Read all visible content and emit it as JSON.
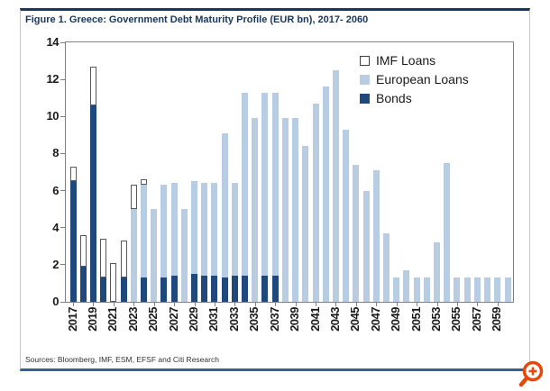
{
  "figure": {
    "title": "Figure 1. Greece: Government Debt Maturity Profile (EUR bn), 2017- 2060",
    "source": "Sources: Bloomberg, IMF, ESM, EFSF and Citi Research"
  },
  "legend": {
    "items": [
      {
        "label": "IMF Loans",
        "series": "IMF Loans"
      },
      {
        "label": "European Loans",
        "series": "European Loans"
      },
      {
        "label": "Bonds",
        "series": "Bonds"
      }
    ]
  },
  "colors": {
    "frame_top_line": "#17375D",
    "frame_bottom_line": "#376092",
    "plot_border": "#808080",
    "bonds": "#1F497D",
    "european_loans": "#B8CCE4",
    "imf_fill": "#FFFFFF",
    "imf_border": "#595959",
    "magnifier_icon": "#E8470A"
  },
  "icons": {
    "bottom_right": "zoom-in-magnifier-icon"
  },
  "chart_data": {
    "type": "bar",
    "stacked": true,
    "grid": false,
    "legend_position": "top-right",
    "title": "Figure 1. Greece: Government Debt Maturity Profile (EUR bn), 2017- 2060",
    "xlabel": "",
    "ylabel": "",
    "ylim": [
      0,
      14
    ],
    "yticks": [
      0,
      2,
      4,
      6,
      8,
      10,
      12,
      14
    ],
    "xtick_labels": [
      "2017",
      "2019",
      "2021",
      "2023",
      "2025",
      "2027",
      "2029",
      "2031",
      "2033",
      "2035",
      "2037",
      "2039",
      "2041",
      "2043",
      "2045",
      "2047",
      "2049",
      "2051",
      "2053",
      "2055",
      "2057",
      "2059"
    ],
    "years": [
      2017,
      2018,
      2019,
      2020,
      2021,
      2022,
      2023,
      2024,
      2025,
      2026,
      2027,
      2028,
      2029,
      2030,
      2031,
      2032,
      2033,
      2034,
      2035,
      2036,
      2037,
      2038,
      2039,
      2040,
      2041,
      2042,
      2043,
      2044,
      2045,
      2046,
      2047,
      2048,
      2049,
      2050,
      2051,
      2052,
      2053,
      2054,
      2055,
      2056,
      2057,
      2058,
      2059,
      2060
    ],
    "series": [
      {
        "name": "Bonds",
        "color": "#1F497D",
        "values": [
          6.5,
          1.9,
          10.6,
          1.3,
          0,
          1.3,
          0,
          1.3,
          0,
          1.3,
          1.4,
          0,
          1.5,
          1.4,
          1.4,
          1.3,
          1.4,
          1.4,
          0,
          1.4,
          1.4,
          0,
          0,
          0,
          0,
          0,
          0,
          0,
          0,
          0,
          0,
          0,
          0,
          0,
          0,
          0,
          0,
          0,
          0,
          0,
          0,
          0,
          0,
          0
        ]
      },
      {
        "name": "European Loans",
        "color": "#B8CCE4",
        "values": [
          0,
          0,
          0,
          0,
          0,
          0,
          5.0,
          5.0,
          5.0,
          5.0,
          5.0,
          5.0,
          5.0,
          5.0,
          5.0,
          7.8,
          5.0,
          9.9,
          9.9,
          9.9,
          9.9,
          9.9,
          9.9,
          8.4,
          10.7,
          11.6,
          12.5,
          9.3,
          7.4,
          6.0,
          7.1,
          3.7,
          1.3,
          1.7,
          1.3,
          1.3,
          3.2,
          7.5,
          1.3,
          1.3,
          1.3,
          1.3,
          1.3,
          1.3
        ]
      },
      {
        "name": "IMF Loans",
        "color": "#FFFFFF",
        "values": [
          0.8,
          1.7,
          2.1,
          2.1,
          2.1,
          2.0,
          1.3,
          0.3,
          0,
          0,
          0,
          0,
          0,
          0,
          0,
          0,
          0,
          0,
          0,
          0,
          0,
          0,
          0,
          0,
          0,
          0,
          0,
          0,
          0,
          0,
          0,
          0,
          0,
          0,
          0,
          0,
          0,
          0,
          0,
          0,
          0,
          0,
          0,
          0
        ]
      }
    ]
  }
}
